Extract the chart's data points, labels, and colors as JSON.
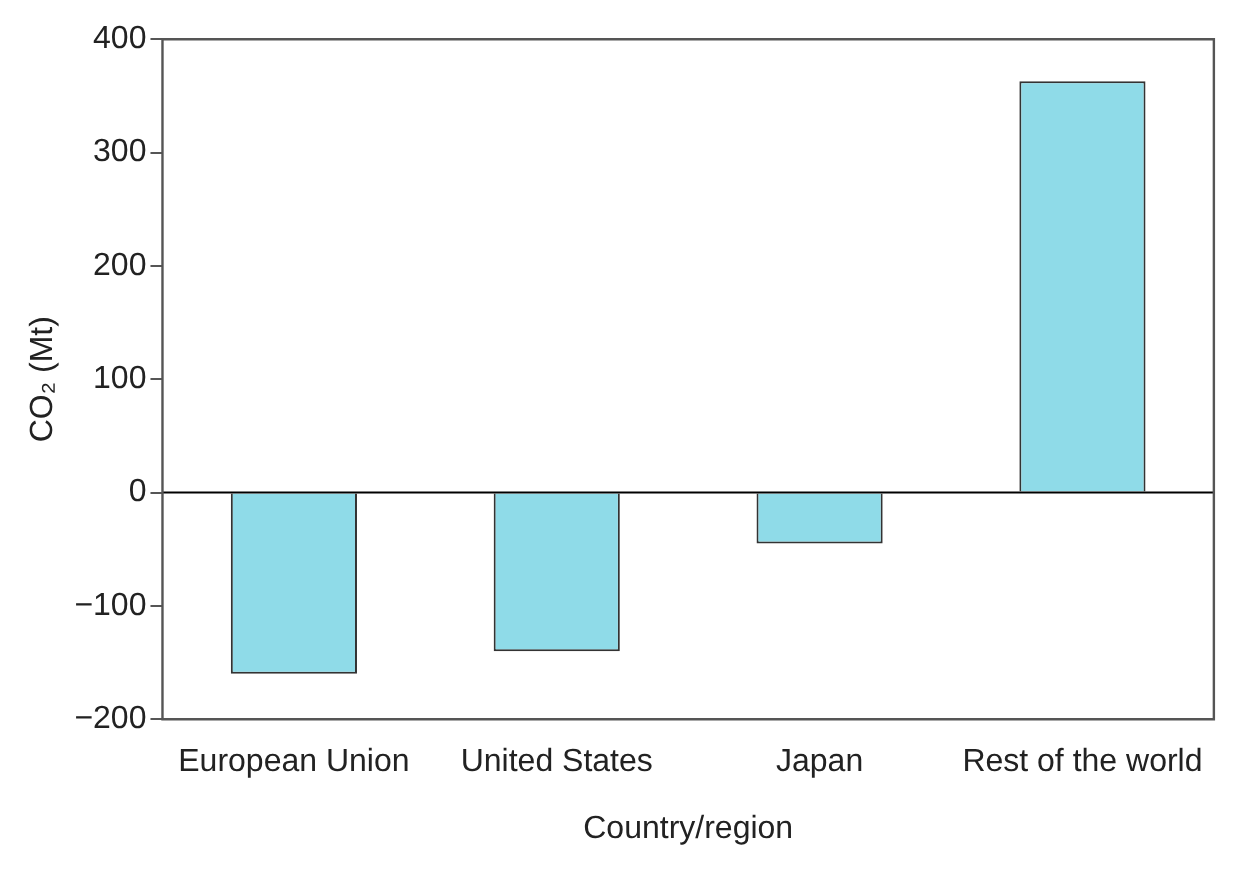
{
  "chart_data": {
    "type": "bar",
    "xlabel": "Country/region",
    "ylabel": "CO₂ (Mt)",
    "categories": [
      "European Union",
      "United States",
      "Japan",
      "Rest of the world"
    ],
    "values": [
      -160,
      -140,
      -45,
      363
    ],
    "color": "#8fdbe8",
    "ylim": [
      -200,
      400
    ],
    "yticks": [
      -200,
      -100,
      0,
      100,
      200,
      300,
      400
    ],
    "ref_lines": [
      {
        "axis": "y",
        "value": 0,
        "color": "#000000"
      }
    ],
    "grid": false,
    "legend": false
  }
}
